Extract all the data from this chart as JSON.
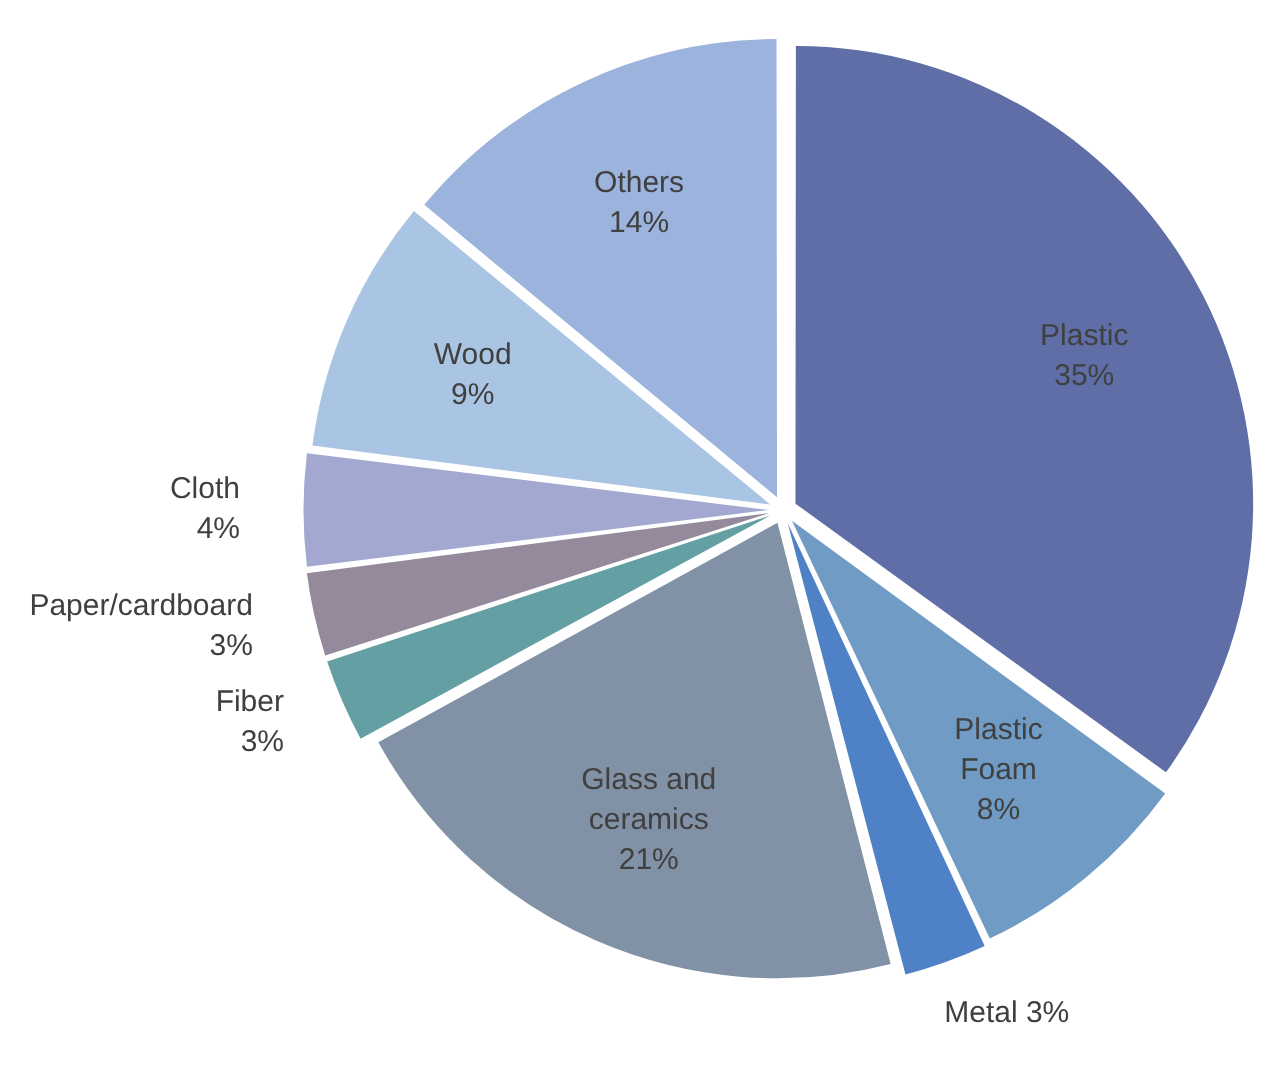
{
  "chart_data": {
    "type": "pie",
    "categories": [
      "Plastic",
      "Plastic Foam",
      "Metal",
      "Glass and ceramics",
      "Fiber",
      "Paper/cardboard",
      "Cloth",
      "Wood",
      "Others"
    ],
    "values": [
      35,
      8,
      3,
      21,
      3,
      3,
      4,
      9,
      14
    ],
    "value_labels": [
      "35%",
      "8%",
      "3%",
      "21%",
      "3%",
      "3%",
      "4%",
      "9%",
      "14%"
    ],
    "colors": [
      "#5f6ea6",
      "#6f9bc4",
      "#4f81c6",
      "#8191a6",
      "#64a0a3",
      "#958a9c",
      "#a2a8d0",
      "#aac4e3",
      "#9cb4dd"
    ],
    "legend": false
  }
}
